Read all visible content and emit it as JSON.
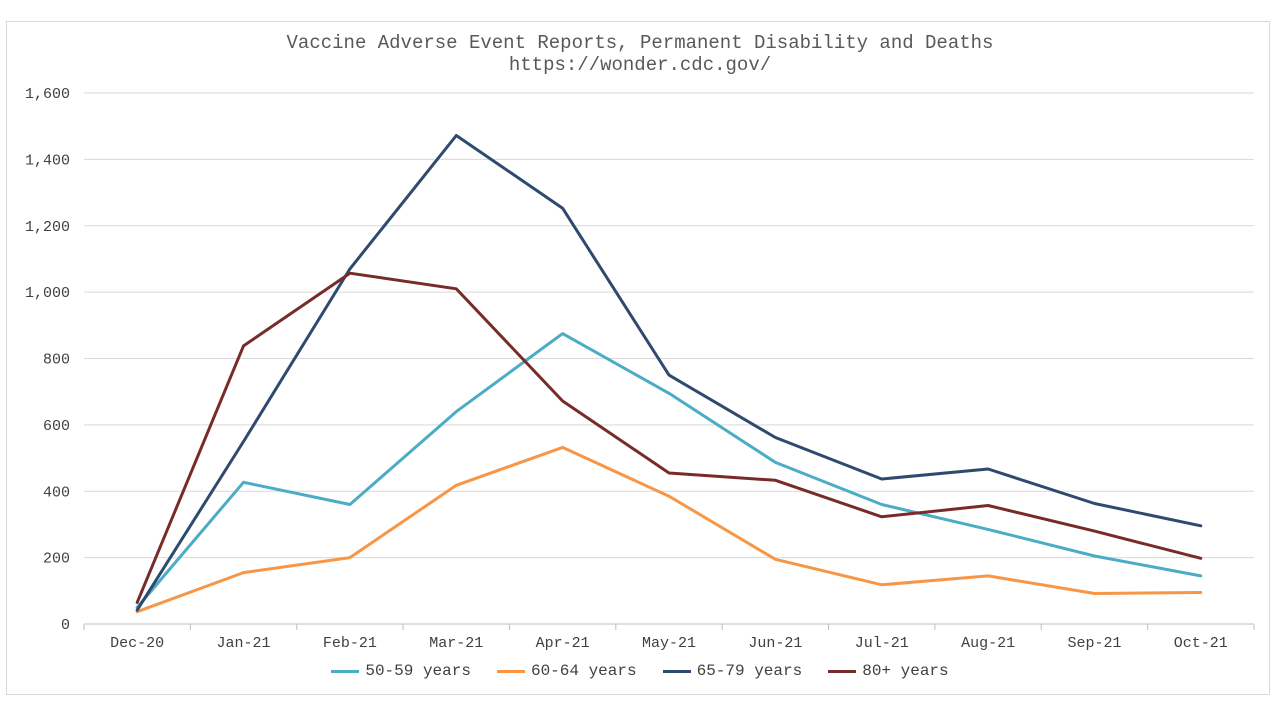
{
  "chart_data": {
    "type": "line",
    "title": "Vaccine Adverse Event Reports, Permanent Disability and Deaths",
    "subtitle": "https://wonder.cdc.gov/",
    "xlabel": "",
    "ylabel": "",
    "ylim": [
      0,
      1600
    ],
    "yticks": [
      "0",
      "200",
      "400",
      "600",
      "800",
      "1,000",
      "1,200",
      "1,400",
      "1,600"
    ],
    "ytick_values": [
      0,
      200,
      400,
      600,
      800,
      1000,
      1200,
      1400,
      1600
    ],
    "grid": true,
    "legend_position": "bottom",
    "categories": [
      "Dec-20",
      "Jan-21",
      "Feb-21",
      "Mar-21",
      "Apr-21",
      "May-21",
      "Jun-21",
      "Jul-21",
      "Aug-21",
      "Sep-21",
      "Oct-21"
    ],
    "series": [
      {
        "name": "50-59 years",
        "color": "#4bacc6",
        "values": [
          50,
          427,
          360,
          640,
          875,
          695,
          487,
          360,
          285,
          205,
          145
        ]
      },
      {
        "name": "60-64 years",
        "color": "#f79646",
        "values": [
          37,
          155,
          200,
          418,
          532,
          385,
          195,
          118,
          145,
          92,
          95
        ]
      },
      {
        "name": "65-79 years",
        "color": "#2e4a6e",
        "values": [
          42,
          550,
          1070,
          1472,
          1253,
          750,
          562,
          437,
          467,
          363,
          296
        ]
      },
      {
        "name": "80+ years",
        "color": "#772c2a",
        "values": [
          65,
          838,
          1057,
          1010,
          672,
          455,
          433,
          323,
          357,
          280,
          198
        ]
      }
    ]
  }
}
